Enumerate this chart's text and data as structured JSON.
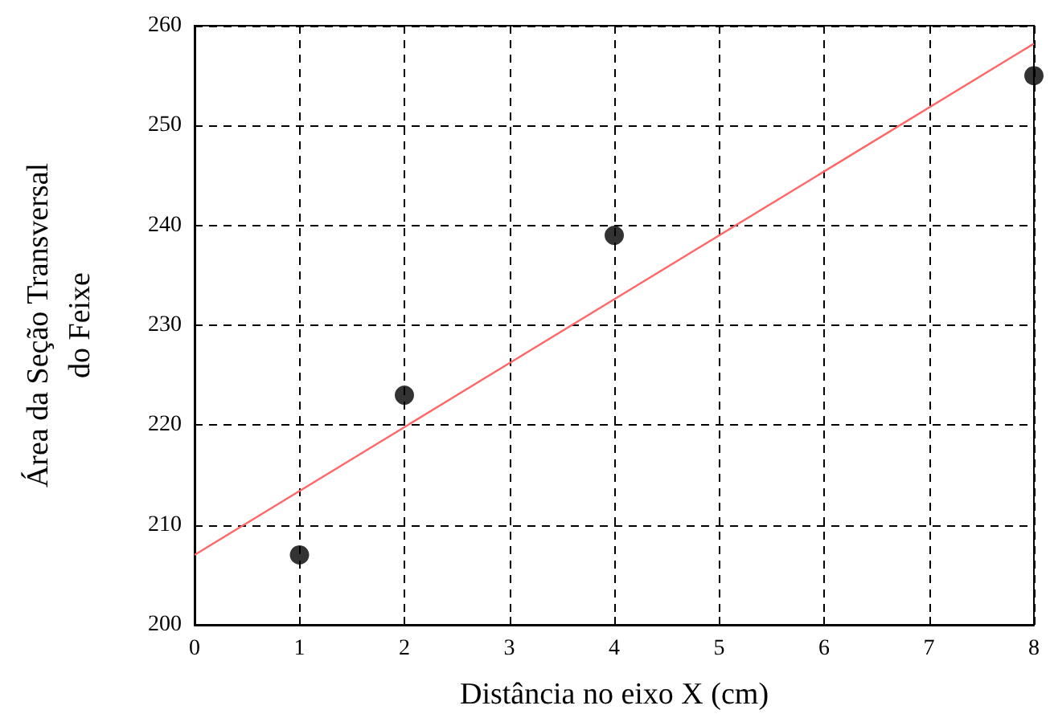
{
  "chart_data": {
    "type": "scatter",
    "xlabel": "Distância no eixo X (cm)",
    "ylabel": "Área da Seção Transversal\ndo Feixe",
    "series": [
      {
        "color": "#000000",
        "x": [
          1,
          2,
          4,
          8
        ],
        "values": [
          207,
          223,
          239,
          255
        ],
        "marker": "circle"
      },
      {
        "type": "line",
        "color": "#ff6666",
        "x": [
          0,
          8
        ],
        "values": [
          207,
          258.2
        ],
        "marker": "none",
        "line_style": "solid"
      }
    ],
    "xlim": [
      0,
      8
    ],
    "xticks": [
      0,
      1,
      2,
      3,
      4,
      5,
      6,
      7,
      8
    ],
    "ylim": [
      200,
      260
    ],
    "yticks": [
      200,
      210,
      220,
      230,
      240,
      250,
      260
    ],
    "grid": true
  }
}
